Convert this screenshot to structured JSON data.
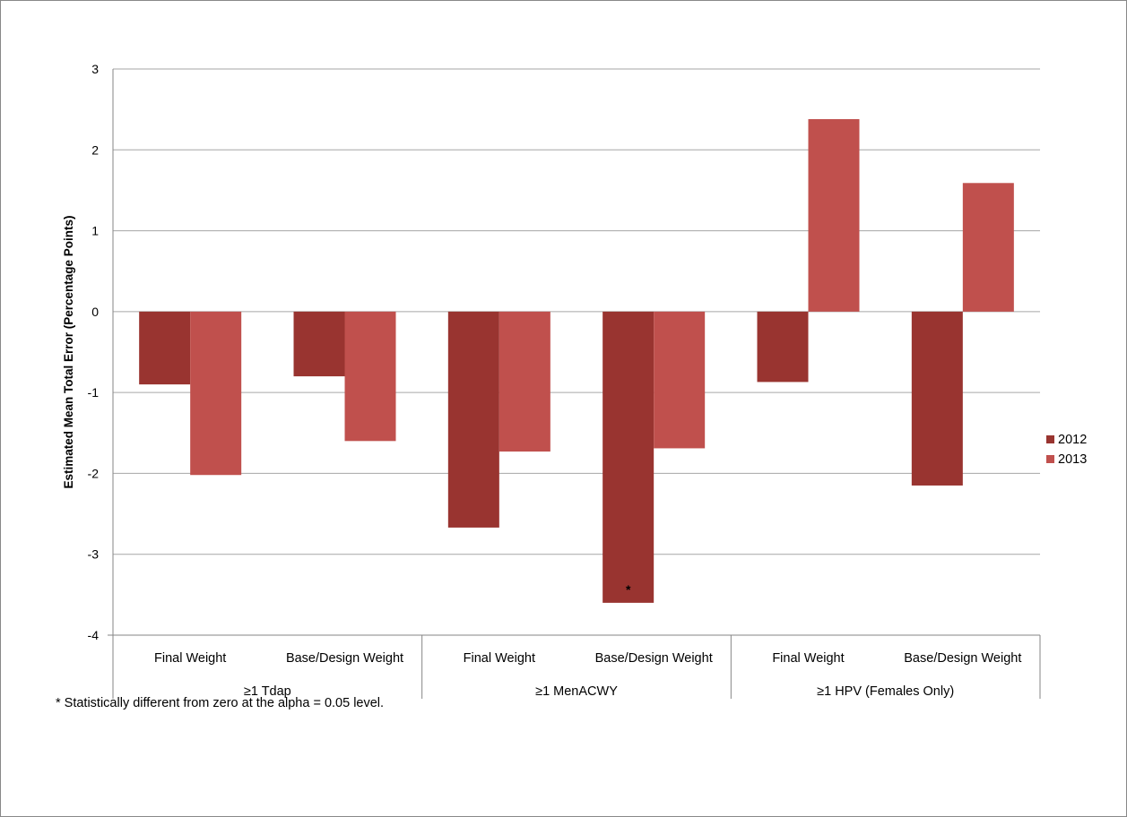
{
  "chart_data": {
    "type": "bar",
    "title": "",
    "xlabel": "",
    "ylabel": "Estimated Mean Total Error (Percentage Points)",
    "ylim": [
      -4,
      3
    ],
    "yticks": [
      3,
      2,
      1,
      0,
      -1,
      -2,
      -3,
      -4
    ],
    "grid": true,
    "legend_position": "right",
    "groups": [
      {
        "label": "≥1 Tdap",
        "categories": [
          "Final Weight",
          "Base/Design Weight"
        ]
      },
      {
        "label": "≥1 MenACWY",
        "categories": [
          "Final Weight",
          "Base/Design Weight"
        ]
      },
      {
        "label": "≥1 HPV (Females Only)",
        "categories": [
          "Final Weight",
          "Base/Design Weight"
        ]
      }
    ],
    "categories": [
      "Final Weight",
      "Base/Design Weight",
      "Final Weight",
      "Base/Design Weight",
      "Final Weight",
      "Base/Design Weight"
    ],
    "series": [
      {
        "name": "2012",
        "color": "#993430",
        "values": [
          -0.9,
          -0.8,
          -2.67,
          -3.6,
          -0.87,
          -2.15
        ]
      },
      {
        "name": "2013",
        "color": "#C0504D",
        "values": [
          -2.02,
          -1.6,
          -1.73,
          -1.69,
          2.38,
          1.59
        ]
      }
    ],
    "annotations": [
      {
        "text": "*",
        "series": "2012",
        "category_index": 3
      }
    ],
    "footnote": "* Statistically different from zero at the alpha = 0.05 level."
  }
}
